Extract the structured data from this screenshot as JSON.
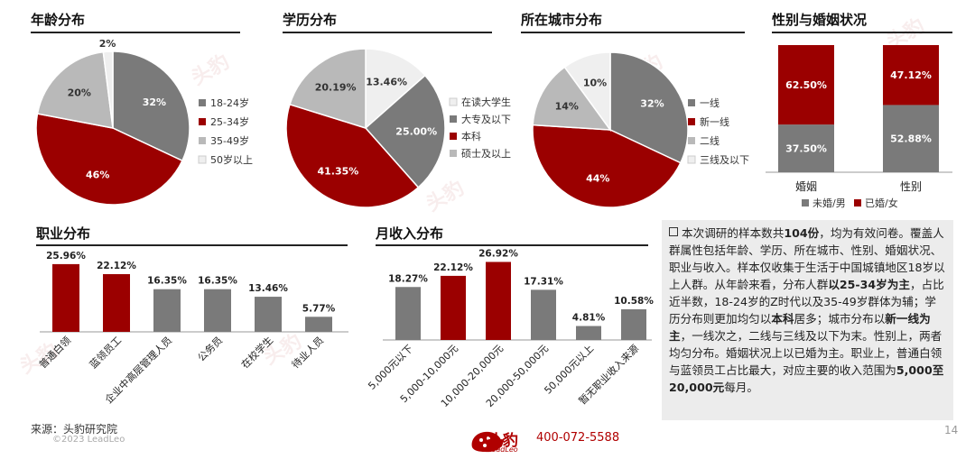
{
  "panels": {
    "age_title": "年龄分布",
    "edu_title": "学历分布",
    "city_title": "所在城市分布",
    "gender_title": "性别与婚姻状况",
    "job_title": "职业分布",
    "income_title": "月收入分布"
  },
  "colors": {
    "red": "#9b0000",
    "dark_gray": "#7a7a7a",
    "light_gray": "#b9b9b9",
    "pale": "#efefef"
  },
  "chart_data": [
    {
      "id": "age",
      "type": "pie",
      "title": "年龄分布",
      "labels": [
        "18-24岁",
        "25-34岁",
        "35-49岁",
        "50岁以上"
      ],
      "values": [
        32,
        46,
        20,
        2
      ],
      "value_labels": [
        "32%",
        "46%",
        "20%",
        "2%"
      ],
      "colors": [
        "#7a7a7a",
        "#9b0000",
        "#b9b9b9",
        "#efefef"
      ],
      "legend": "right"
    },
    {
      "id": "education",
      "type": "pie",
      "title": "学历分布",
      "labels": [
        "在读大学生",
        "大专及以下",
        "本科",
        "硕士及以上"
      ],
      "values": [
        13.46,
        25.0,
        41.35,
        20.19
      ],
      "value_labels": [
        "13.46%",
        "25.00%",
        "41.35%",
        "20.19%"
      ],
      "colors": [
        "#efefef",
        "#7a7a7a",
        "#9b0000",
        "#b9b9b9"
      ],
      "legend": "right"
    },
    {
      "id": "city",
      "type": "pie",
      "title": "所在城市分布",
      "labels": [
        "一线",
        "新一线",
        "二线",
        "三线及以下"
      ],
      "values": [
        32,
        44,
        14,
        10
      ],
      "value_labels": [
        "32%",
        "44%",
        "14%",
        "10%"
      ],
      "colors": [
        "#7a7a7a",
        "#9b0000",
        "#b9b9b9",
        "#efefef"
      ],
      "legend": "right"
    },
    {
      "id": "gender_marriage",
      "type": "bar",
      "title": "性别与婚姻状况",
      "stacked": true,
      "categories": [
        "婚姻",
        "性别"
      ],
      "series": [
        {
          "name": "未婚/男",
          "values": [
            37.5,
            52.88
          ],
          "labels": [
            "37.50%",
            "52.88%"
          ],
          "color": "#7a7a7a"
        },
        {
          "name": "已婚/女",
          "values": [
            62.5,
            47.12
          ],
          "labels": [
            "62.50%",
            "47.12%"
          ],
          "color": "#9b0000"
        }
      ],
      "ylim": [
        0,
        100
      ],
      "legend": "bottom"
    },
    {
      "id": "occupation",
      "type": "bar",
      "title": "职业分布",
      "categories": [
        "普通白领",
        "蓝领员工",
        "企业中高层管理人员",
        "公务员",
        "在校学生",
        "待业人员"
      ],
      "values": [
        25.96,
        22.12,
        16.35,
        16.35,
        13.46,
        5.77
      ],
      "value_labels": [
        "25.96%",
        "22.12%",
        "16.35%",
        "16.35%",
        "13.46%",
        "5.77%"
      ],
      "colors": [
        "#9b0000",
        "#9b0000",
        "#7a7a7a",
        "#7a7a7a",
        "#7a7a7a",
        "#7a7a7a"
      ],
      "ylim": [
        0,
        28
      ]
    },
    {
      "id": "income",
      "type": "bar",
      "title": "月收入分布",
      "categories": [
        "5,000元以下",
        "5,000-10,000元",
        "10,000-20,000元",
        "20,000-50,000元",
        "50,000元以上",
        "暂无职业收入来源"
      ],
      "values": [
        18.27,
        22.12,
        26.92,
        17.31,
        4.81,
        10.58
      ],
      "value_labels": [
        "18.27%",
        "22.12%",
        "26.92%",
        "17.31%",
        "4.81%",
        "10.58%"
      ],
      "colors": [
        "#7a7a7a",
        "#9b0000",
        "#9b0000",
        "#7a7a7a",
        "#7a7a7a",
        "#7a7a7a"
      ],
      "ylim": [
        0,
        28
      ]
    }
  ],
  "note": {
    "segments": [
      {
        "t": "本次调研的样本数共",
        "b": false
      },
      {
        "t": "104份",
        "b": true
      },
      {
        "t": "，均为有效问卷。覆盖人群属性包括年龄、学历、所在城市、性别、婚姻状况、职业与收入。样本仅收集于生活于中国城镇地区18岁以上人群。从年龄来看，分布人群",
        "b": false
      },
      {
        "t": "以25-34岁为主",
        "b": true
      },
      {
        "t": "，占比近半数，18-24岁的Z时代以及35-49岁群体为辅；学历分布则更加均匀以",
        "b": false
      },
      {
        "t": "本科",
        "b": true
      },
      {
        "t": "居多；城市分布以",
        "b": false
      },
      {
        "t": "新一线为主",
        "b": true
      },
      {
        "t": "，一线次之，二线与三线及以下为末。性别上，两者均匀分布。婚姻状况上以已婚为主。职业上，普通白领与蓝领员工占比最大，对应主要的收入范围为",
        "b": false
      },
      {
        "t": "5,000至20,000元",
        "b": true
      },
      {
        "t": "每月。",
        "b": false
      }
    ]
  },
  "footer": {
    "source": "来源：头豹研究院",
    "copyright": "©2023 LeadLeo",
    "logo_name": "头豹",
    "logo_sub": "LeadLeo",
    "phone": "400-072-5588",
    "page": "14"
  },
  "watermarks": [
    "头豹",
    "头豹",
    "头豹",
    "头豹",
    "头豹",
    "头豹"
  ]
}
